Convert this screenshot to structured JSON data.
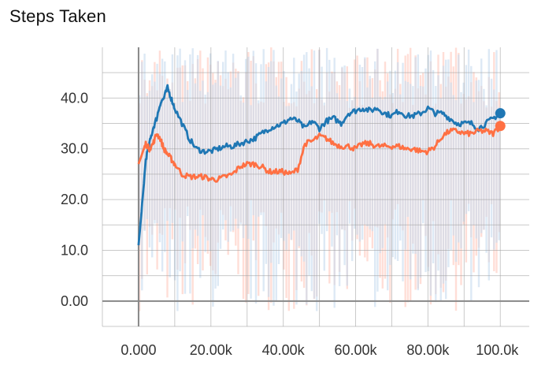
{
  "chart_data": {
    "type": "line",
    "title": "Steps Taken",
    "xlabel": "",
    "ylabel": "",
    "xlim": [
      -10000,
      108000
    ],
    "ylim": [
      -5,
      50
    ],
    "x_ticks": [
      0,
      20000,
      40000,
      60000,
      80000,
      100000
    ],
    "x_tick_labels": [
      "0.000",
      "20.00k",
      "40.00k",
      "60.00k",
      "80.00k",
      "100.0k"
    ],
    "y_ticks": [
      0,
      10,
      20,
      30,
      40
    ],
    "y_tick_labels": [
      "0.00",
      "10.0",
      "20.0",
      "30.0",
      "40.0"
    ],
    "grid": true,
    "legend": "none",
    "series": [
      {
        "color": "#1f77b4",
        "raw_color": "#c6dbef",
        "x": [
          0,
          1000,
          2000,
          3000,
          4000,
          5000,
          6000,
          7000,
          8000,
          9000,
          10000,
          12000,
          14000,
          16000,
          18000,
          20000,
          22000,
          24000,
          26000,
          28000,
          30000,
          32000,
          34000,
          36000,
          38000,
          40000,
          42000,
          44000,
          46000,
          48000,
          50000,
          52000,
          54000,
          56000,
          58000,
          60000,
          62000,
          64000,
          66000,
          68000,
          70000,
          72000,
          74000,
          76000,
          78000,
          80000,
          82000,
          84000,
          86000,
          88000,
          90000,
          92000,
          94000,
          96000,
          98000,
          100000
        ],
        "values": [
          11,
          19,
          28,
          31,
          34,
          36,
          39,
          40,
          42,
          40,
          38,
          35,
          32,
          30,
          29.5,
          29.5,
          30,
          30.5,
          30.5,
          31,
          31.5,
          32,
          33,
          34,
          34.5,
          35,
          36,
          35.5,
          34,
          35.5,
          34,
          35.5,
          36,
          35,
          37,
          37.5,
          38,
          37.5,
          38,
          37,
          36.5,
          37.5,
          36.5,
          36.5,
          37,
          38,
          37,
          37,
          36,
          35,
          35,
          35,
          34,
          35,
          36,
          37
        ]
      },
      {
        "color": "#ff7043",
        "raw_color": "#ffd3c9",
        "x": [
          0,
          1000,
          2000,
          3000,
          4000,
          5000,
          6000,
          7000,
          8000,
          9000,
          10000,
          12000,
          14000,
          16000,
          18000,
          20000,
          22000,
          24000,
          26000,
          28000,
          30000,
          32000,
          34000,
          36000,
          38000,
          40000,
          42000,
          44000,
          46000,
          48000,
          50000,
          52000,
          54000,
          56000,
          58000,
          60000,
          62000,
          64000,
          66000,
          68000,
          70000,
          72000,
          74000,
          76000,
          78000,
          80000,
          82000,
          84000,
          86000,
          88000,
          90000,
          92000,
          94000,
          96000,
          98000,
          100000
        ],
        "values": [
          27,
          29,
          31,
          30,
          31,
          33,
          32,
          30,
          29,
          28,
          27,
          25,
          24.5,
          24.5,
          24.5,
          24,
          24,
          24.5,
          25,
          26.5,
          27,
          27,
          26.5,
          25.5,
          25.5,
          25.5,
          25,
          26,
          31,
          31.5,
          32.5,
          32,
          31,
          30.5,
          30.5,
          30,
          31,
          31,
          30.5,
          30.5,
          30.5,
          30.5,
          30,
          30,
          29.5,
          29.5,
          30.5,
          32.5,
          33.5,
          33.5,
          33,
          33,
          33.5,
          33.5,
          33,
          34.5
        ]
      }
    ]
  }
}
